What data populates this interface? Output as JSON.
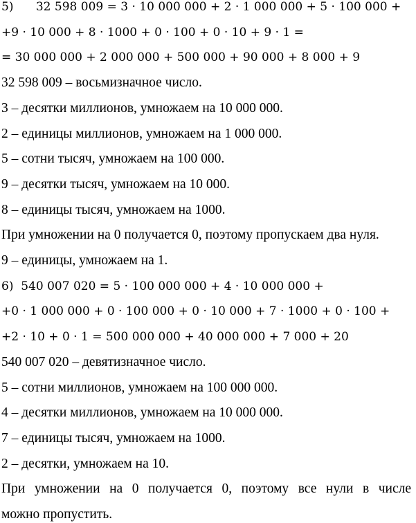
{
  "lines": [
    "5)      32 598 009 = 3 · 10 000 000 + 2 · 1 000 000 + 5 · 100 000 +",
    "+9 · 10 000 + 8 · 1000 + 0 · 100 + 0 · 10 + 9 · 1 =",
    "= 30 000 000 + 2 000 000 + 500 000 + 90 000 + 8 000 + 9",
    "32 598 009 – восьмизначное число.",
    "3 – десятки миллионов, умножаем на 10 000 000.",
    "2 – единицы миллионов, умножаем на 1 000 000.",
    "5 – сотни тысяч, умножаем на 100 000.",
    "9 – десятки тысяч, умножаем на 10 000.",
    "8 – единицы тысяч, умножаем на 1000.",
    "При умножении на 0 получается 0, поэтому пропускаем два нуля.",
    "9 – единицы, умножаем на 1.",
    "6)  540 007 020 = 5 · 100 000 000 + 4 · 10 000 000 +",
    "+0 · 1 000 000 + 0 · 100 000 + 0 · 10 000 + 7 · 1000 + 0 · 100 +",
    "+2 · 10 + 0 · 1 = 500 000 000 + 40 000 000 + 7 000 + 20",
    "540 007 020 – девятизначное число.",
    "5 – сотни миллионов, умножаем на 100 000 000.",
    "4 – десятки миллионов, умножаем на 10 000 000.",
    "7 – единицы тысяч, умножаем на 1000.",
    "2 – десятки, умножаем на 10.",
    "При умножении на 0 получается 0, поэтому все нули в числе",
    "можно пропустить."
  ]
}
